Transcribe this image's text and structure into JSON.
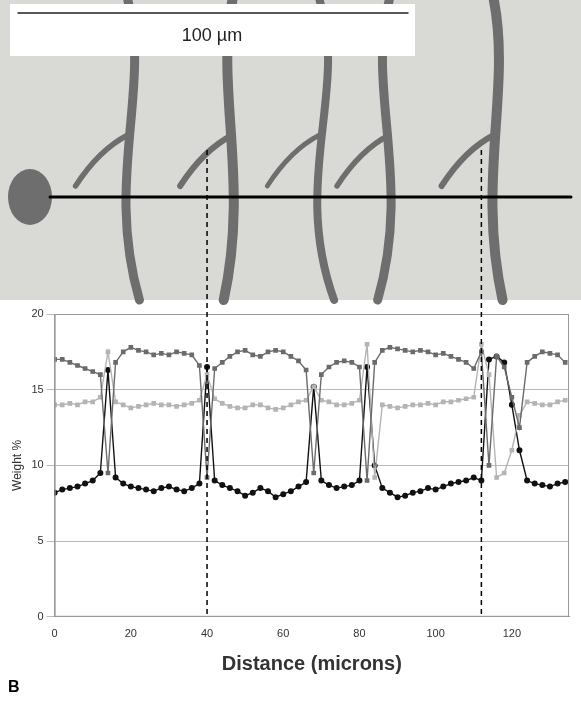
{
  "chart_data": {
    "type": "line",
    "x_label": "Distance (microns)",
    "y_label": "Weight %",
    "panel_label": "B",
    "annotations": [
      {
        "text": "100 µm"
      }
    ],
    "vertical_lines": [
      40,
      112
    ],
    "xlim": [
      0,
      135
    ],
    "xticks": [
      0,
      20,
      40,
      60,
      80,
      100,
      120
    ],
    "ylim": [
      0,
      20
    ],
    "yticks": [
      0,
      5,
      10,
      15,
      20
    ],
    "grid": true,
    "x": [
      0,
      2,
      4,
      6,
      8,
      10,
      12,
      14,
      16,
      18,
      20,
      22,
      24,
      26,
      28,
      30,
      32,
      34,
      36,
      38,
      40,
      42,
      44,
      46,
      48,
      50,
      52,
      54,
      56,
      58,
      60,
      62,
      64,
      66,
      68,
      70,
      72,
      74,
      76,
      78,
      80,
      82,
      84,
      86,
      88,
      90,
      92,
      94,
      96,
      98,
      100,
      102,
      104,
      106,
      108,
      110,
      112,
      114,
      116,
      118,
      120,
      122,
      124,
      126,
      128,
      130,
      132,
      134
    ],
    "series": [
      {
        "color": "#6b6b6b",
        "marker": "square",
        "line_style": "solid",
        "values": [
          17,
          17,
          16.8,
          16.6,
          16.4,
          16.2,
          16.0,
          9.5,
          16.8,
          17.5,
          17.8,
          17.6,
          17.5,
          17.3,
          17.4,
          17.3,
          17.5,
          17.4,
          17.3,
          16.6,
          9.2,
          16.4,
          16.8,
          17.2,
          17.5,
          17.6,
          17.3,
          17.2,
          17.5,
          17.6,
          17.5,
          17.2,
          16.9,
          16.3,
          9.5,
          16.0,
          16.5,
          16.8,
          16.9,
          16.8,
          16.5,
          9.0,
          16.8,
          17.6,
          17.8,
          17.7,
          17.6,
          17.5,
          17.6,
          17.5,
          17.3,
          17.4,
          17.2,
          17.0,
          16.8,
          16.4,
          17.5,
          10,
          17.2,
          16.5,
          14.5,
          12.5,
          16.8,
          17.2,
          17.5,
          17.4,
          17.3,
          16.8
        ]
      },
      {
        "color": "#b4b4b4",
        "marker": "square",
        "line_style": "solid",
        "values": [
          14,
          14,
          14.1,
          14,
          14.2,
          14.2,
          14.5,
          17.5,
          14.2,
          14,
          13.8,
          13.9,
          14,
          14.1,
          14,
          14,
          13.9,
          14,
          14.1,
          14.3,
          16.0,
          14.4,
          14.1,
          13.9,
          13.8,
          13.8,
          14,
          14,
          13.8,
          13.7,
          13.8,
          14,
          14.2,
          14.3,
          15.2,
          14.3,
          14.2,
          14,
          14,
          14.1,
          14.3,
          18,
          9.2,
          14,
          13.9,
          13.8,
          13.9,
          14,
          14,
          14.1,
          14,
          14.2,
          14.2,
          14.3,
          14.4,
          14.5,
          18,
          16,
          9.2,
          9.5,
          11,
          13.3,
          14.2,
          14.1,
          14,
          14,
          14.2,
          14.3
        ]
      },
      {
        "color": "#111111",
        "marker": "circle",
        "line_style": "solid",
        "values": [
          8.2,
          8.4,
          8.5,
          8.6,
          8.8,
          9.0,
          9.5,
          16.3,
          9.2,
          8.8,
          8.6,
          8.5,
          8.4,
          8.3,
          8.5,
          8.6,
          8.4,
          8.3,
          8.5,
          8.8,
          16.5,
          9.0,
          8.7,
          8.5,
          8.3,
          8.0,
          8.2,
          8.5,
          8.3,
          7.9,
          8.1,
          8.3,
          8.6,
          8.9,
          15.2,
          9.0,
          8.7,
          8.5,
          8.6,
          8.7,
          9.0,
          16.5,
          10,
          8.5,
          8.2,
          7.9,
          8.0,
          8.2,
          8.3,
          8.5,
          8.4,
          8.6,
          8.8,
          8.9,
          9.0,
          9.2,
          9.0,
          17,
          17.2,
          16.8,
          14,
          11,
          9.0,
          8.8,
          8.7,
          8.6,
          8.8,
          8.9
        ]
      }
    ]
  }
}
